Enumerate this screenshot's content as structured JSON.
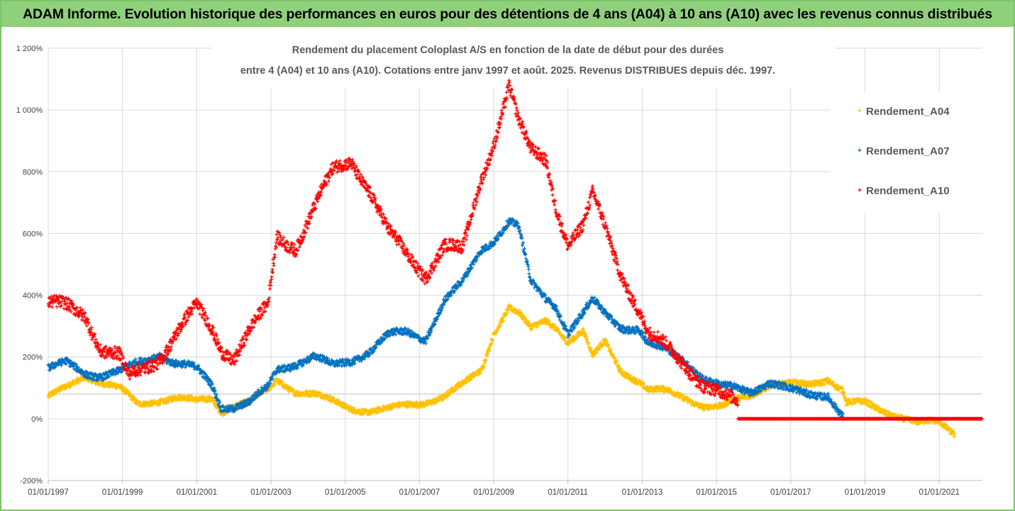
{
  "header": {
    "title": "ADAM Informe. Evolution historique des performances en euros pour des détentions de 4 ans (A04) à 10 ans (A10) avec les revenus connus distribués"
  },
  "chart_data": {
    "type": "scatter",
    "title_lines": [
      "Rendement du placement Coloplast A/S en fonction de la date de début pour des durées",
      "entre 4 (A04) et 10 ans (A10). Cotations entre janv 1997 et août. 2025. Revenus DISTRIBUES depuis déc. 1997."
    ],
    "xlabel": "",
    "ylabel": "",
    "x_start": "1997-01-01",
    "x_end": "2022-03-01",
    "ylim": [
      -200,
      1200
    ],
    "y_ticks": [
      -200,
      0,
      200,
      400,
      600,
      800,
      1000,
      1200
    ],
    "y_tick_labels": [
      "-200%",
      "0%",
      "200%",
      "400%",
      "600%",
      "800%",
      "1 000%",
      "1 200%"
    ],
    "x_ticks": [
      "1997-01-01",
      "1999-01-01",
      "2001-01-01",
      "2003-01-01",
      "2005-01-01",
      "2007-01-01",
      "2009-01-01",
      "2011-01-01",
      "2013-01-01",
      "2015-01-01",
      "2017-01-01",
      "2019-01-01",
      "2021-01-01"
    ],
    "x_tick_labels": [
      "01/01/1997",
      "01/01/1999",
      "01/01/2001",
      "01/01/2003",
      "01/01/2005",
      "01/01/2007",
      "01/01/2009",
      "01/01/2011",
      "01/01/2013",
      "01/01/2015",
      "01/01/2017",
      "01/01/2019",
      "01/01/2021"
    ],
    "grid": true,
    "reference_line_y": 80,
    "legend_position": "right",
    "series": [
      {
        "name": "Rendement_A04",
        "color": "#ffc000",
        "end_date": "2021-06-01",
        "points": [
          [
            "1997-01-01",
            70
          ],
          [
            "1997-07-01",
            100
          ],
          [
            "1998-01-01",
            140
          ],
          [
            "1998-06-01",
            120
          ],
          [
            "1998-12-01",
            100
          ],
          [
            "1999-06-01",
            45
          ],
          [
            "2000-01-01",
            60
          ],
          [
            "2000-06-01",
            70
          ],
          [
            "2001-01-01",
            55
          ],
          [
            "2001-06-01",
            65
          ],
          [
            "2001-09-01",
            25
          ],
          [
            "2002-01-01",
            45
          ],
          [
            "2002-06-01",
            55
          ],
          [
            "2002-12-01",
            90
          ],
          [
            "2003-03-01",
            125
          ],
          [
            "2003-09-01",
            90
          ],
          [
            "2004-03-01",
            80
          ],
          [
            "2004-09-01",
            55
          ],
          [
            "2005-03-01",
            35
          ],
          [
            "2005-09-01",
            25
          ],
          [
            "2006-03-01",
            30
          ],
          [
            "2006-09-01",
            45
          ],
          [
            "2007-03-01",
            55
          ],
          [
            "2007-09-01",
            70
          ],
          [
            "2008-03-01",
            110
          ],
          [
            "2008-09-01",
            160
          ],
          [
            "2009-01-01",
            280
          ],
          [
            "2009-06-01",
            360
          ],
          [
            "2009-09-01",
            340
          ],
          [
            "2010-01-01",
            290
          ],
          [
            "2010-06-01",
            320
          ],
          [
            "2010-09-01",
            300
          ],
          [
            "2011-01-01",
            250
          ],
          [
            "2011-06-01",
            280
          ],
          [
            "2011-09-01",
            200
          ],
          [
            "2012-01-01",
            250
          ],
          [
            "2012-06-01",
            160
          ],
          [
            "2012-12-01",
            120
          ],
          [
            "2013-03-01",
            90
          ],
          [
            "2013-09-01",
            90
          ],
          [
            "2014-03-01",
            70
          ],
          [
            "2014-09-01",
            40
          ],
          [
            "2015-03-01",
            35
          ],
          [
            "2015-06-01",
            55
          ],
          [
            "2015-12-01",
            80
          ],
          [
            "2016-06-01",
            110
          ],
          [
            "2017-01-01",
            110
          ],
          [
            "2017-06-01",
            110
          ],
          [
            "2018-01-01",
            130
          ],
          [
            "2018-06-01",
            90
          ],
          [
            "2018-07-01",
            50
          ],
          [
            "2019-01-01",
            50
          ],
          [
            "2019-06-01",
            30
          ],
          [
            "2020-01-01",
            5
          ],
          [
            "2020-06-01",
            -15
          ],
          [
            "2021-01-01",
            -10
          ],
          [
            "2021-06-01",
            -45
          ]
        ]
      },
      {
        "name": "Rendement_A07",
        "color": "#0070c0",
        "end_date": "2018-06-01",
        "points": [
          [
            "1997-01-01",
            160
          ],
          [
            "1997-07-01",
            180
          ],
          [
            "1998-01-01",
            150
          ],
          [
            "1998-06-01",
            140
          ],
          [
            "1998-12-01",
            150
          ],
          [
            "1999-06-01",
            180
          ],
          [
            "2000-01-01",
            210
          ],
          [
            "2000-06-01",
            180
          ],
          [
            "2001-01-01",
            160
          ],
          [
            "2001-06-01",
            110
          ],
          [
            "2001-09-01",
            40
          ],
          [
            "2002-01-01",
            40
          ],
          [
            "2002-06-01",
            50
          ],
          [
            "2002-12-01",
            100
          ],
          [
            "2003-03-01",
            160
          ],
          [
            "2003-09-01",
            180
          ],
          [
            "2004-03-01",
            200
          ],
          [
            "2004-09-01",
            170
          ],
          [
            "2005-03-01",
            190
          ],
          [
            "2005-09-01",
            220
          ],
          [
            "2006-03-01",
            270
          ],
          [
            "2006-09-01",
            280
          ],
          [
            "2007-03-01",
            260
          ],
          [
            "2007-09-01",
            380
          ],
          [
            "2008-03-01",
            440
          ],
          [
            "2008-09-01",
            550
          ],
          [
            "2009-01-01",
            580
          ],
          [
            "2009-06-01",
            640
          ],
          [
            "2009-09-01",
            620
          ],
          [
            "2010-01-01",
            440
          ],
          [
            "2010-06-01",
            390
          ],
          [
            "2010-09-01",
            370
          ],
          [
            "2011-01-01",
            280
          ],
          [
            "2011-06-01",
            340
          ],
          [
            "2011-09-01",
            380
          ],
          [
            "2012-01-01",
            340
          ],
          [
            "2012-06-01",
            300
          ],
          [
            "2012-12-01",
            290
          ],
          [
            "2013-03-01",
            240
          ],
          [
            "2013-09-01",
            220
          ],
          [
            "2014-03-01",
            190
          ],
          [
            "2014-09-01",
            130
          ],
          [
            "2015-03-01",
            100
          ],
          [
            "2015-06-01",
            100
          ],
          [
            "2015-12-01",
            90
          ],
          [
            "2016-06-01",
            120
          ],
          [
            "2017-01-01",
            90
          ],
          [
            "2017-06-01",
            80
          ],
          [
            "2018-01-01",
            80
          ],
          [
            "2018-06-01",
            5
          ]
        ]
      },
      {
        "name": "Rendement_A10",
        "color": "#ff0000",
        "end_date": "2015-08-01",
        "points": [
          [
            "1997-01-01",
            370
          ],
          [
            "1997-07-01",
            360
          ],
          [
            "1998-01-01",
            340
          ],
          [
            "1998-06-01",
            230
          ],
          [
            "1998-12-01",
            200
          ],
          [
            "1999-03-01",
            130
          ],
          [
            "1999-06-01",
            150
          ],
          [
            "2000-01-01",
            200
          ],
          [
            "2000-06-01",
            270
          ],
          [
            "2001-01-01",
            360
          ],
          [
            "2001-06-01",
            290
          ],
          [
            "2001-09-01",
            230
          ],
          [
            "2002-01-01",
            200
          ],
          [
            "2002-06-01",
            280
          ],
          [
            "2002-12-01",
            360
          ],
          [
            "2003-03-01",
            590
          ],
          [
            "2003-09-01",
            560
          ],
          [
            "2004-03-01",
            680
          ],
          [
            "2004-09-01",
            800
          ],
          [
            "2005-03-01",
            840
          ],
          [
            "2005-09-01",
            740
          ],
          [
            "2006-03-01",
            600
          ],
          [
            "2006-09-01",
            530
          ],
          [
            "2007-03-01",
            470
          ],
          [
            "2007-09-01",
            560
          ],
          [
            "2008-03-01",
            540
          ],
          [
            "2008-09-01",
            780
          ],
          [
            "2009-01-01",
            900
          ],
          [
            "2009-06-01",
            1080
          ],
          [
            "2009-09-01",
            960
          ],
          [
            "2010-01-01",
            860
          ],
          [
            "2010-06-01",
            840
          ],
          [
            "2010-09-01",
            700
          ],
          [
            "2011-01-01",
            570
          ],
          [
            "2011-06-01",
            620
          ],
          [
            "2011-09-01",
            720
          ],
          [
            "2012-01-01",
            620
          ],
          [
            "2012-06-01",
            480
          ],
          [
            "2012-12-01",
            350
          ],
          [
            "2013-03-01",
            270
          ],
          [
            "2013-09-01",
            230
          ],
          [
            "2014-03-01",
            180
          ],
          [
            "2014-09-01",
            110
          ],
          [
            "2015-03-01",
            70
          ],
          [
            "2015-08-01",
            50
          ]
        ]
      }
    ],
    "zero_segment": {
      "series": "Rendement_A10",
      "color": "#ff0000",
      "from": "2015-08-01",
      "to": "2022-03-01",
      "value": 0
    },
    "a07_zero_segment": {
      "series": "Rendement_A07",
      "color": "#0070c0",
      "from": "2018-06-01",
      "to": "2022-03-01",
      "value": 0
    }
  }
}
